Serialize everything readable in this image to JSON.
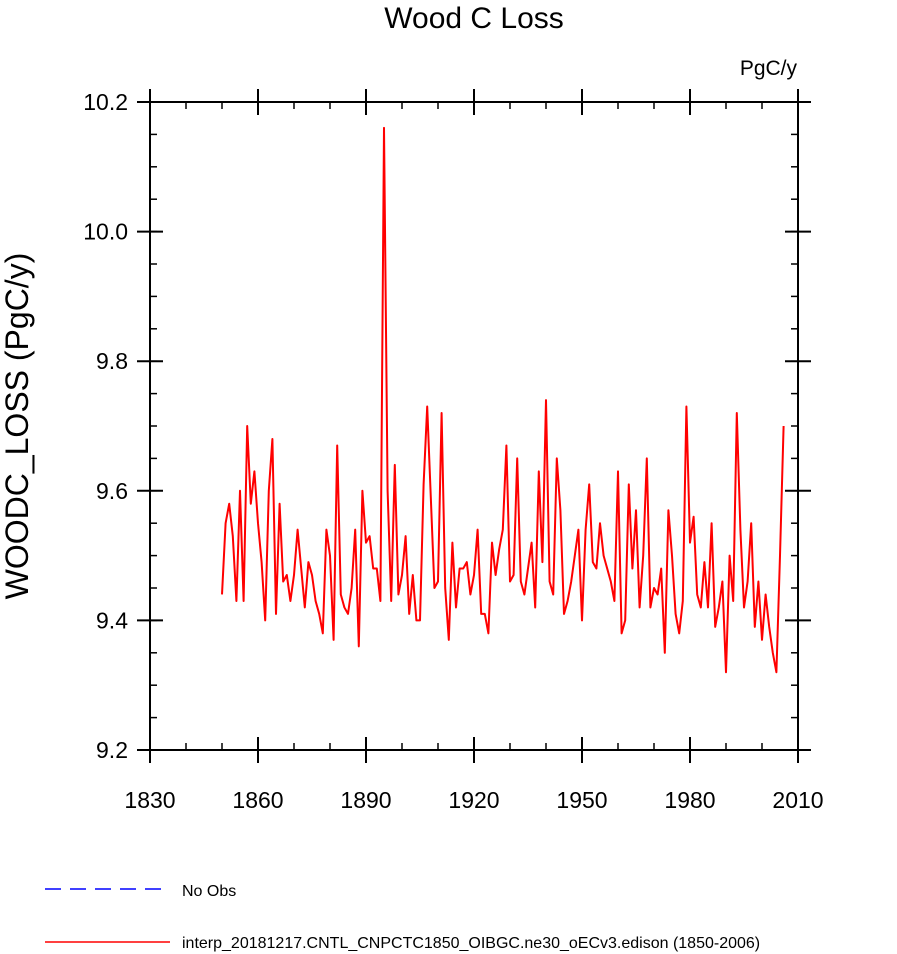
{
  "chart_data": {
    "type": "line",
    "title": "Wood C Loss",
    "units": "PgC/y",
    "ylabel": "WOODC_LOSS  (PgC/y)",
    "xlabel": "",
    "xlim": [
      1830,
      2010
    ],
    "ylim": [
      9.2,
      10.2
    ],
    "xticks": [
      1830,
      1860,
      1890,
      1920,
      1950,
      1980,
      2010
    ],
    "xtick_labels": [
      "1830",
      "1860",
      "1890",
      "1920",
      "1950",
      "1980",
      "2010"
    ],
    "yticks": [
      9.2,
      9.4,
      9.6,
      9.8,
      10.0,
      10.2
    ],
    "ytick_labels": [
      "9.2",
      "9.4",
      "9.6",
      "9.8",
      "10.0",
      "10.2"
    ],
    "x_minor_step": 10,
    "y_minor_step": 0.05,
    "grid": false,
    "series": [
      {
        "name": "interp_20181217.CNTL_CNPCTC1850_OIBGC.ne30_oECv3.edison (1850-2006)",
        "color": "#ff0000",
        "x_start": 1850,
        "x_step": 1,
        "values": [
          9.44,
          9.55,
          9.58,
          9.53,
          9.43,
          9.6,
          9.43,
          9.7,
          9.58,
          9.63,
          9.55,
          9.49,
          9.4,
          9.6,
          9.68,
          9.41,
          9.58,
          9.46,
          9.47,
          9.43,
          9.47,
          9.54,
          9.48,
          9.42,
          9.49,
          9.47,
          9.43,
          9.41,
          9.38,
          9.54,
          9.5,
          9.37,
          9.67,
          9.44,
          9.42,
          9.41,
          9.45,
          9.54,
          9.36,
          9.6,
          9.52,
          9.53,
          9.48,
          9.48,
          9.43,
          10.16,
          9.6,
          9.43,
          9.64,
          9.44,
          9.47,
          9.53,
          9.41,
          9.47,
          9.4,
          9.4,
          9.61,
          9.73,
          9.59,
          9.45,
          9.46,
          9.72,
          9.45,
          9.37,
          9.52,
          9.42,
          9.48,
          9.48,
          9.49,
          9.44,
          9.47,
          9.54,
          9.41,
          9.41,
          9.38,
          9.52,
          9.47,
          9.51,
          9.54,
          9.67,
          9.46,
          9.47,
          9.65,
          9.46,
          9.44,
          9.48,
          9.52,
          9.42,
          9.63,
          9.49,
          9.74,
          9.46,
          9.44,
          9.65,
          9.57,
          9.41,
          9.43,
          9.46,
          9.5,
          9.54,
          9.4,
          9.54,
          9.61,
          9.49,
          9.48,
          9.55,
          9.5,
          9.48,
          9.46,
          9.43,
          9.63,
          9.38,
          9.4,
          9.61,
          9.48,
          9.57,
          9.42,
          9.5,
          9.65,
          9.42,
          9.45,
          9.44,
          9.48,
          9.35,
          9.57,
          9.5,
          9.41,
          9.38,
          9.43,
          9.73,
          9.52,
          9.56,
          9.44,
          9.42,
          9.49,
          9.42,
          9.55,
          9.39,
          9.42,
          9.46,
          9.32,
          9.5,
          9.43,
          9.72,
          9.54,
          9.42,
          9.46,
          9.55,
          9.39,
          9.46,
          9.37,
          9.44,
          9.39,
          9.35,
          9.32,
          9.5,
          9.7
        ]
      }
    ],
    "legend": [
      {
        "label": "No Obs",
        "color": "#0000ff",
        "style": "dashed"
      },
      {
        "label": "interp_20181217.CNTL_CNPCTC1850_OIBGC.ne30_oECv3.edison (1850-2006)",
        "color": "#ff0000",
        "style": "solid"
      }
    ],
    "legend_position": "bottom-left"
  }
}
